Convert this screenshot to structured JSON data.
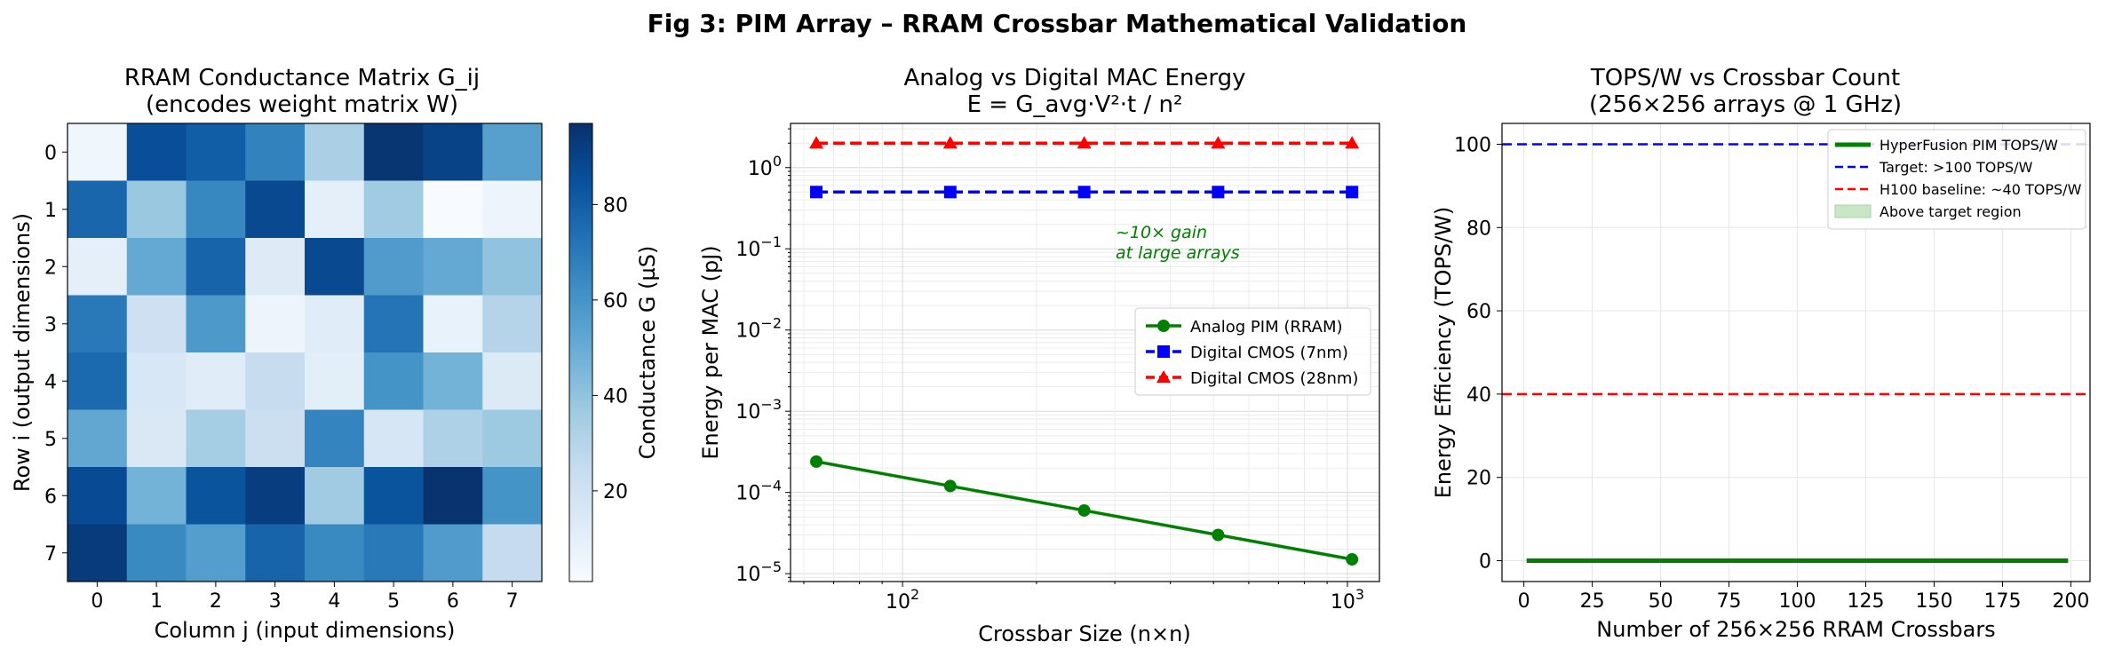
{
  "suptitle": "Fig 3: PIM Array – RRAM Crossbar Mathematical Validation",
  "chart_data": [
    {
      "type": "heatmap",
      "title_lines": [
        "RRAM Conductance Matrix G_ij",
        "(encodes weight matrix W)"
      ],
      "xlabel": "Column j  (input dimensions)",
      "ylabel": "Row i  (output dimensions)",
      "x_ticks": [
        "0",
        "1",
        "2",
        "3",
        "4",
        "5",
        "6",
        "7"
      ],
      "y_ticks": [
        "0",
        "1",
        "2",
        "3",
        "4",
        "5",
        "6",
        "7"
      ],
      "colorbar_label": "Conductance G (µS)",
      "colorbar_ticks": [
        20,
        40,
        60,
        80
      ],
      "colorbar_range": [
        1,
        97
      ],
      "colormap": [
        "#f7fbff",
        "#deebf7",
        "#c6dbef",
        "#9ecae1",
        "#6baed6",
        "#4292c6",
        "#2171b5",
        "#08519c",
        "#08306b"
      ],
      "matrix": [
        [
          5,
          86,
          80,
          67,
          33,
          95,
          90,
          55
        ],
        [
          77,
          38,
          65,
          88,
          10,
          36,
          1,
          6
        ],
        [
          10,
          51,
          78,
          13,
          88,
          57,
          51,
          40
        ],
        [
          70,
          21,
          58,
          6,
          12,
          72,
          8,
          30
        ],
        [
          76,
          16,
          12,
          24,
          11,
          60,
          47,
          14
        ],
        [
          52,
          15,
          35,
          22,
          66,
          17,
          32,
          37
        ],
        [
          87,
          47,
          84,
          92,
          36,
          84,
          96,
          60
        ],
        [
          93,
          64,
          56,
          78,
          64,
          70,
          57,
          25
        ]
      ]
    },
    {
      "type": "line",
      "title_lines": [
        "Analog vs Digital MAC Energy",
        "E = G_avg·V²·t / n²"
      ],
      "xlabel": "Crossbar Size (n×n)",
      "ylabel": "Energy per MAC (pJ)",
      "x_scale": "log",
      "y_scale": "log",
      "xlim": [
        56,
        1180
      ],
      "ylim": [
        8e-06,
        3.5
      ],
      "x_tick_labels": [
        {
          "value": 100,
          "label": "10",
          "exp": "2"
        },
        {
          "value": 1000,
          "label": "10",
          "exp": "3"
        }
      ],
      "y_tick_labels": [
        {
          "value": 1e-05,
          "label": "10",
          "exp": "−5"
        },
        {
          "value": 0.0001,
          "label": "10",
          "exp": "−4"
        },
        {
          "value": 0.001,
          "label": "10",
          "exp": "−3"
        },
        {
          "value": 0.01,
          "label": "10",
          "exp": "−2"
        },
        {
          "value": 0.1,
          "label": "10",
          "exp": "−1"
        },
        {
          "value": 1,
          "label": "10",
          "exp": "0"
        }
      ],
      "x": [
        64,
        128,
        256,
        512,
        1024
      ],
      "series": [
        {
          "name": "Analog PIM (RRAM)",
          "color": "#008000",
          "marker": "circle",
          "dashed": false,
          "values": [
            0.00024,
            0.00012,
            6e-05,
            3e-05,
            1.5e-05
          ]
        },
        {
          "name": "Digital CMOS (7nm)",
          "color": "#0000ff",
          "marker": "square",
          "dashed": true,
          "values": [
            0.5,
            0.5,
            0.5,
            0.5,
            0.5
          ]
        },
        {
          "name": "Digital CMOS (28nm)",
          "color": "#ff0000",
          "marker": "triangle",
          "dashed": true,
          "values": [
            2.0,
            2.0,
            2.0,
            2.0,
            2.0
          ]
        }
      ],
      "annotation_lines": [
        "~10× gain",
        "at large arrays"
      ],
      "annotation_color": "#008000",
      "legend_position": "center-right",
      "grid": true
    },
    {
      "type": "line",
      "title_lines": [
        "TOPS/W vs Crossbar Count",
        "(256×256 arrays @ 1 GHz)"
      ],
      "xlabel": "Number of 256×256 RRAM Crossbars",
      "ylabel": "Energy Efficiency (TOPS/W)",
      "xlim": [
        -8,
        207
      ],
      "ylim": [
        -5,
        105
      ],
      "x_ticks": [
        0,
        25,
        50,
        75,
        100,
        125,
        150,
        175,
        200
      ],
      "y_ticks": [
        0,
        20,
        40,
        60,
        80,
        100
      ],
      "series": [
        {
          "name": "HyperFusion PIM TOPS/W",
          "color": "#008000",
          "x": [
            1,
            199
          ],
          "values": [
            0.0,
            0.0
          ]
        }
      ],
      "ref_lines": [
        {
          "name": "Target: >100 TOPS/W",
          "color": "#0000ff",
          "y": 100
        },
        {
          "name": "H100 baseline: ~40 TOPS/W",
          "color": "#ff0000",
          "y": 40
        }
      ],
      "region_label": "Above target region",
      "region_color": "#a5d6a0",
      "legend_position": "upper-right",
      "grid": true
    }
  ]
}
